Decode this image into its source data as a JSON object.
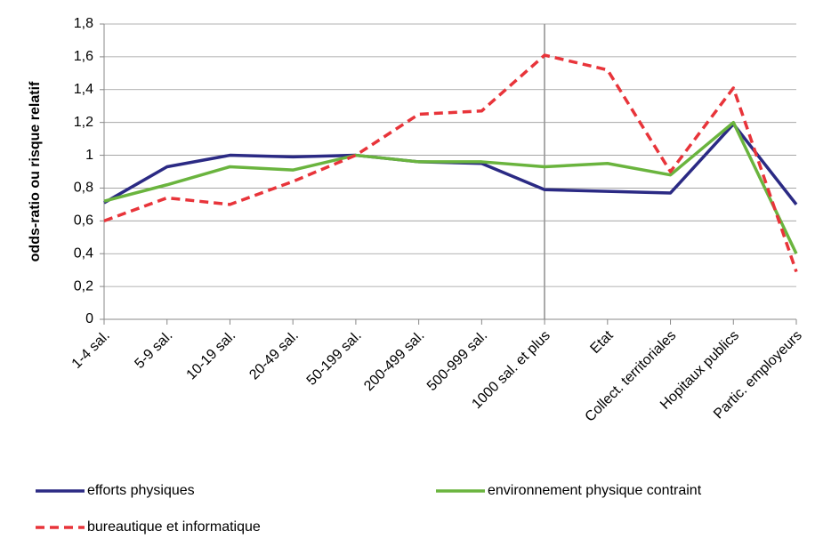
{
  "chart_data": {
    "type": "line",
    "y_label": "odds-ratio ou risque relatif",
    "categories": [
      "1-4 sal.",
      "5-9 sal.",
      "10-19 sal.",
      "20-49 sal.",
      "50-199 sal.",
      "200-499 sal.",
      "500-999 sal.",
      "1000 sal.  et plus",
      "Etat",
      "Collect. territoriales",
      "Hopitaux publics",
      "Partic. employeurs"
    ],
    "series": [
      {
        "name": "efforts physiques",
        "color": "#2b2a84",
        "dashed": false,
        "values": [
          0.71,
          0.93,
          1.0,
          0.99,
          1.0,
          0.96,
          0.95,
          0.79,
          0.78,
          0.77,
          1.19,
          0.7
        ]
      },
      {
        "name": "environnement physique contraint",
        "color": "#6ab43e",
        "dashed": false,
        "values": [
          0.72,
          0.82,
          0.93,
          0.91,
          1.0,
          0.96,
          0.96,
          0.93,
          0.95,
          0.88,
          1.2,
          0.4
        ]
      },
      {
        "name": "bureautique et informatique",
        "color": "#e8343a",
        "dashed": true,
        "values": [
          0.6,
          0.74,
          0.7,
          0.84,
          1.0,
          1.25,
          1.27,
          1.61,
          1.52,
          0.9,
          1.41,
          0.29
        ]
      }
    ],
    "ylim": [
      0,
      1.8
    ],
    "yticks": [
      0,
      {
        "value": 0.2,
        "label": "0,2"
      },
      {
        "value": 0.4,
        "label": "0,4"
      },
      {
        "value": 0.6,
        "label": "0,6"
      },
      {
        "value": 0.8,
        "label": "0,8"
      },
      1,
      {
        "value": 1.2,
        "label": "1,2"
      },
      {
        "value": 1.4,
        "label": "1,4"
      },
      {
        "value": 1.6,
        "label": "1,6"
      },
      {
        "value": 1.8,
        "label": "1,8"
      }
    ],
    "grid": true,
    "legend": "bottom"
  }
}
